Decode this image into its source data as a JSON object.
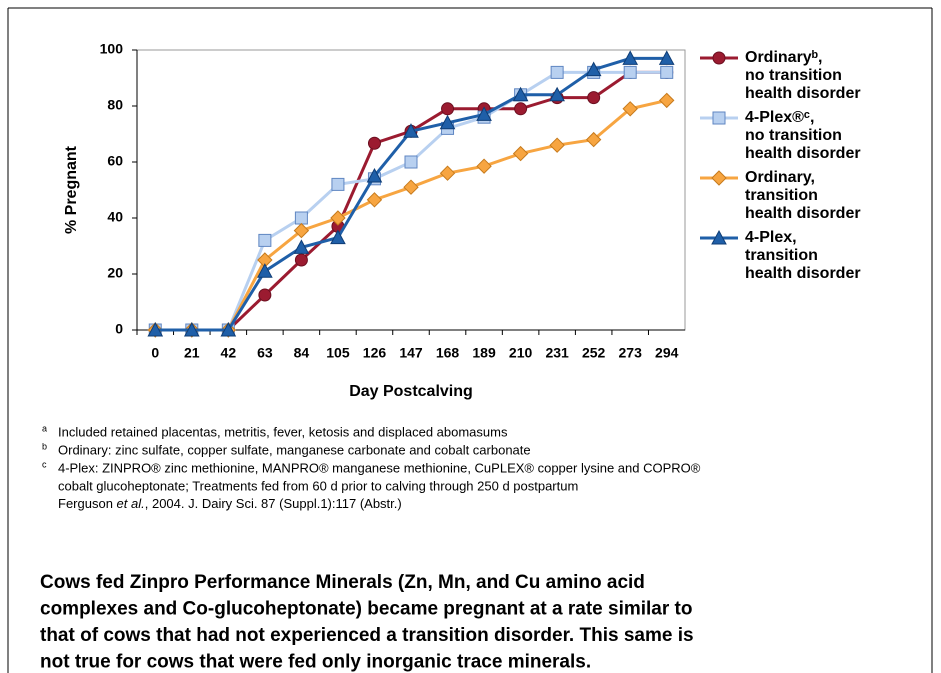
{
  "chart_data": {
    "type": "line",
    "x_label": "Day Postcalving",
    "y_label": "% Pregnant",
    "categories": [
      "0",
      "21",
      "42",
      "63",
      "84",
      "105",
      "126",
      "147",
      "168",
      "189",
      "210",
      "231",
      "252",
      "273",
      "294"
    ],
    "ylim": [
      0,
      100
    ],
    "yticks": [
      0,
      20,
      40,
      60,
      80,
      100
    ],
    "legend": "right",
    "series": [
      {
        "name": [
          "Ordinaryᵇ,",
          "no transition",
          "health disorder"
        ],
        "color": "#9b1b30",
        "edge": "#6b0f20",
        "marker": "circle",
        "values": [
          0,
          0,
          0,
          12.5,
          25,
          37,
          66.7,
          71,
          79,
          79,
          79,
          83,
          83,
          92,
          92
        ]
      },
      {
        "name": [
          "4-Plex®ᶜ,",
          "no transition",
          "health disorder"
        ],
        "color": "#b8d0f0",
        "edge": "#5f86c2",
        "marker": "square",
        "values": [
          0,
          0,
          0,
          32,
          40,
          52,
          54,
          60,
          72,
          76,
          84,
          92,
          92,
          92,
          92
        ]
      },
      {
        "name": [
          "Ordinary,",
          "transition",
          "health disorder"
        ],
        "color": "#f7a541",
        "edge": "#c67a1c",
        "marker": "diamond",
        "values": [
          0,
          0,
          0,
          25,
          35.5,
          40,
          46.5,
          51,
          56,
          58.5,
          63,
          66,
          68,
          79,
          82
        ]
      },
      {
        "name": [
          "4-Plex,",
          "transition",
          "health disorder"
        ],
        "color": "#1f5fa8",
        "edge": "#0f3d75",
        "marker": "triangle",
        "values": [
          0,
          0,
          0,
          21,
          29.5,
          33,
          55,
          71,
          74,
          77,
          84,
          84,
          93,
          97,
          97
        ]
      }
    ]
  },
  "footnotes": [
    {
      "marker": "a",
      "lines": [
        "Included retained placentas, metritis, fever, ketosis and displaced abomasums"
      ]
    },
    {
      "marker": "b",
      "lines": [
        "Ordinary: zinc sulfate, copper sulfate, manganese carbonate and cobalt carbonate"
      ]
    },
    {
      "marker": "c",
      "lines": [
        "4-Plex: ZINPRO® zinc methionine, MANPRO® manganese methionine, CuPLEX® copper lysine and COPRO®",
        "cobalt glucoheptonate; Treatments fed from 60 d prior to calving through 250 d postpartum"
      ]
    }
  ],
  "citation": {
    "author": "Ferguson ",
    "etal": "et al.",
    "rest": ", 2004. J. Dairy Sci. 87 (Suppl.1):117 (Abstr.)"
  },
  "conclusion": [
    "Cows fed Zinpro Performance Minerals (Zn, Mn, and Cu amino acid",
    "complexes and Co-glucoheptonate) became pregnant at a rate similar to",
    "that of cows that had not experienced a transition disorder. This same is",
    "not true for cows that were fed only inorganic trace minerals."
  ]
}
